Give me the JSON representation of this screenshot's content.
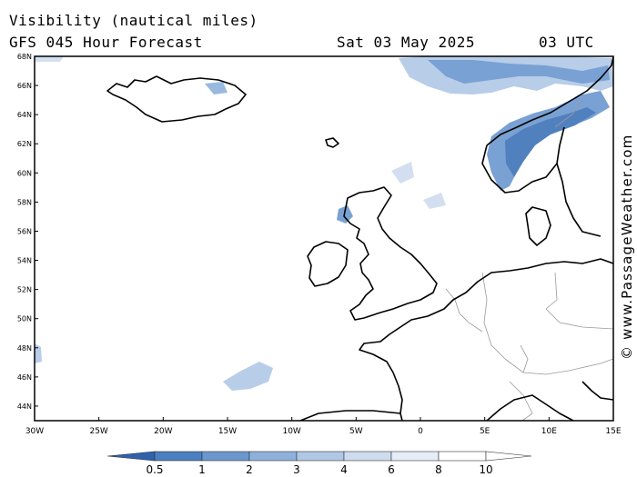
{
  "header": {
    "title_line1": "Visibility (nautical miles)",
    "title_line2": "GFS 045 Hour Forecast",
    "date": "Sat 03 May 2025",
    "time": "03 UTC"
  },
  "credit": "© www.PassageWeather.com",
  "map": {
    "lon_labels": [
      "30W",
      "25W",
      "20W",
      "15W",
      "10W",
      "5W",
      "0",
      "5E",
      "10E",
      "15E"
    ],
    "lat_labels": [
      "68N",
      "66N",
      "64N",
      "62N",
      "60N",
      "58N",
      "56N",
      "54N",
      "52N",
      "50N",
      "48N",
      "46N",
      "44N"
    ],
    "lon_range": [
      -30,
      15
    ],
    "lat_range": [
      43,
      68
    ],
    "land_color": "#000000",
    "border_color": "#9a9a9a"
  },
  "legend": {
    "labels": [
      "0.5",
      "1",
      "2",
      "3",
      "4",
      "6",
      "8",
      "10"
    ],
    "colors": [
      "#2f62ad",
      "#4a7fc0",
      "#6b97cf",
      "#8eb1dc",
      "#b0c8e6",
      "#cfdcef",
      "#e6edf7",
      "#ffffff"
    ]
  }
}
